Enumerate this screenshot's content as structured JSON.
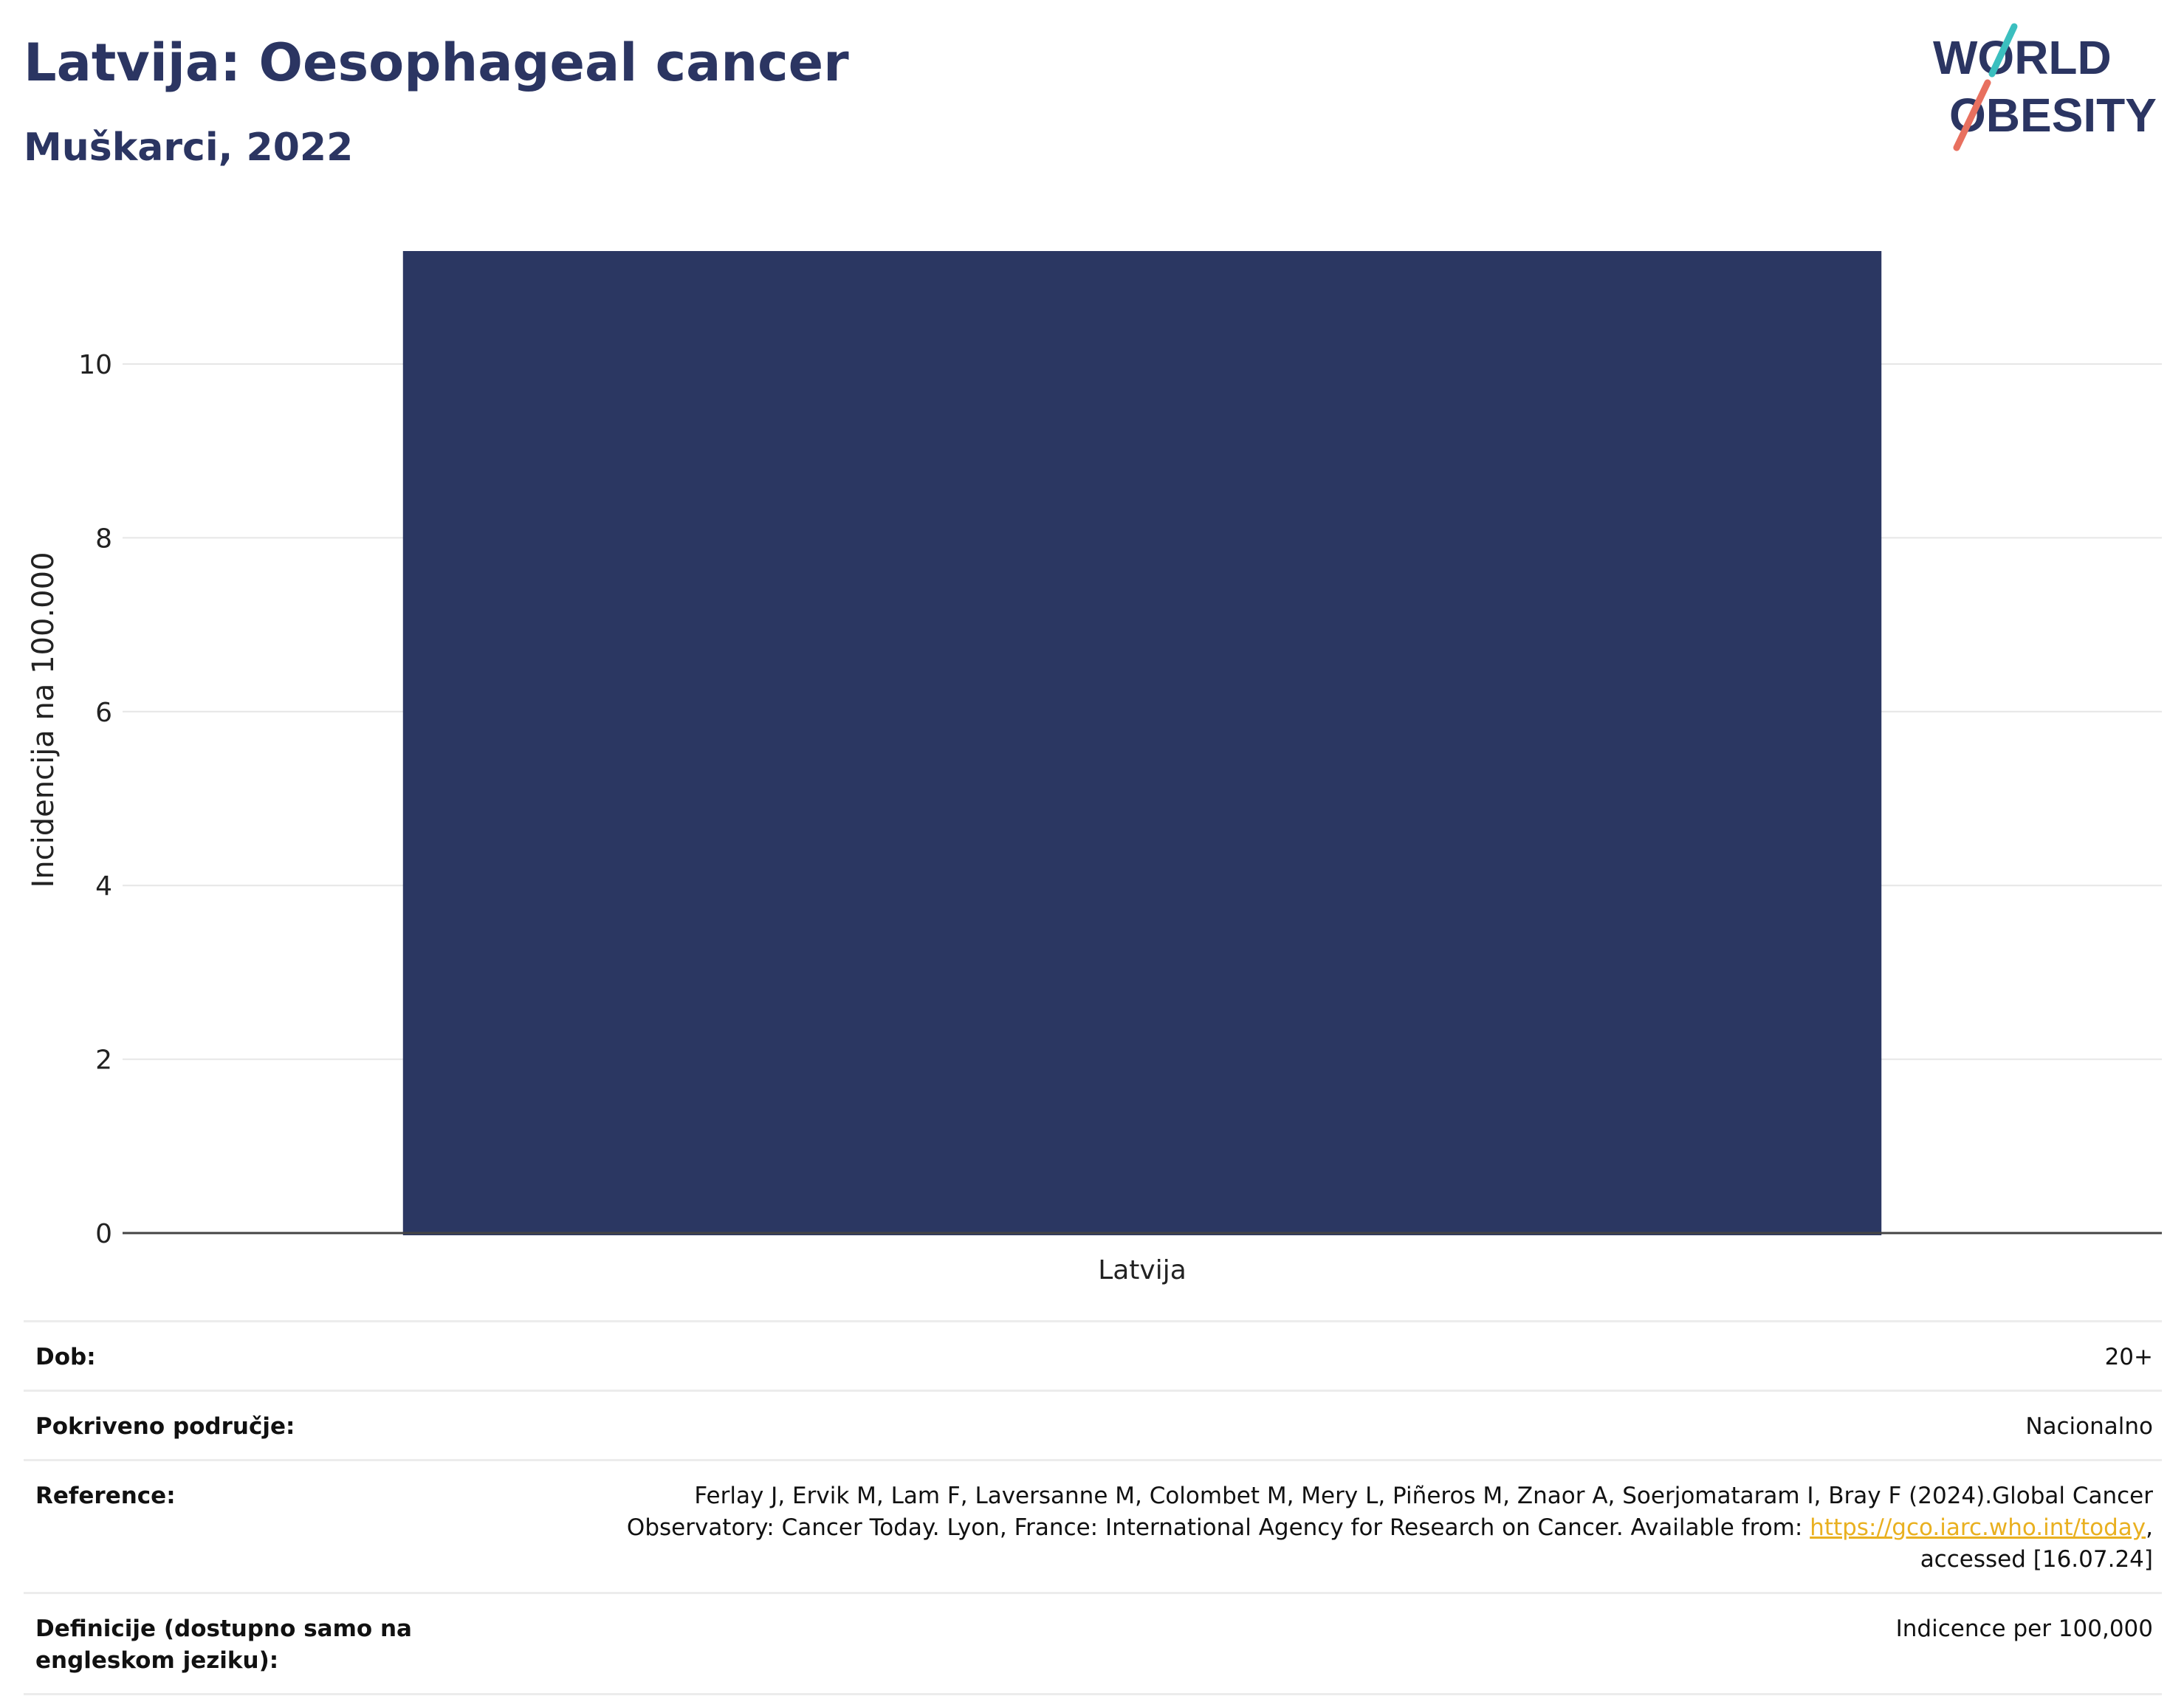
{
  "header": {
    "title": "Latvija: Oesophageal cancer",
    "subtitle": "Muškarci, 2022"
  },
  "logo": {
    "line1": "WORLD",
    "line2": "OBESITY",
    "colors": {
      "text": "#2b3562",
      "slash_top": "#3bbfbf",
      "slash_bottom": "#e8705f"
    }
  },
  "chart_data": {
    "type": "bar",
    "categories": [
      "Latvija"
    ],
    "values": [
      11.3
    ],
    "title": "Latvija: Oesophageal cancer",
    "subtitle": "Muškarci, 2022",
    "xlabel": "",
    "ylabel": "Incidencija na 100.000",
    "ylim": [
      0,
      11.3
    ],
    "yticks": [
      0,
      2,
      4,
      6,
      8,
      10
    ],
    "grid": true,
    "legend": "none",
    "bar_color": "#2b3762"
  },
  "meta": {
    "rows": [
      {
        "label": "Dob:",
        "value": "20+"
      },
      {
        "label": "Pokriveno područje:",
        "value": "Nacionalno"
      },
      {
        "label": "Reference:",
        "value_pre": "Ferlay J, Ervik M, Lam F, Laversanne M, Colombet M, Mery L, Piñeros M, Znaor A, Soerjomataram I, Bray F (2024).Global Cancer Observatory: Cancer Today. Lyon, France: International Agency for Research on Cancer. Available from: ",
        "link": "https://gco.iarc.who.int/today",
        "value_post": ", accessed [16.07.24]"
      },
      {
        "label": "Definicije (dostupno samo na engleskom jeziku):",
        "value": "Indicence per 100,000"
      }
    ]
  }
}
